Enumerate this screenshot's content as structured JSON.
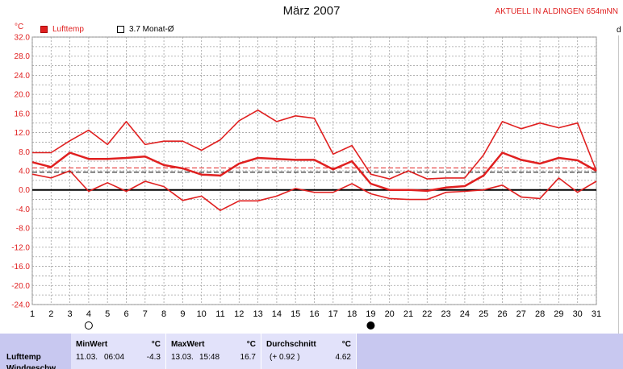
{
  "header": {
    "title": "März 2007",
    "station": "AKTUELL IN ALDINGEN 654mNN",
    "unit_left": "°C",
    "unit_right": "d"
  },
  "legend": [
    {
      "label": "Lufttemp",
      "color": "#e02020",
      "filled": true
    },
    {
      "label": "3.7 Monat-Ø",
      "color": "#ffffff",
      "filled": false
    }
  ],
  "stats": {
    "row_label": "Lufttemp",
    "row_label_2": "Windgeschw.",
    "min": {
      "header": "MinWert",
      "unit": "°C",
      "date": "11.03.",
      "time": "06:04",
      "value": "-4.3"
    },
    "max": {
      "header": "MaxWert",
      "unit": "°C",
      "date": "13.03.",
      "time": "15:48",
      "value": "16.7"
    },
    "avg": {
      "header": "Durchschnitt",
      "unit": "°C",
      "delta": "(+ 0.92 )",
      "value": "4.62"
    }
  },
  "chart_data": {
    "type": "line",
    "title": "März 2007",
    "ylabel": "°C",
    "ylim": [
      -24,
      32
    ],
    "yticks": [
      "32.0",
      "28.0",
      "24.0",
      "20.0",
      "16.0",
      "12.0",
      "8.0",
      "4.0",
      "0.0",
      "-4.0",
      "-8.0",
      "-12.0",
      "-16.0",
      "-20.0",
      "-24.0"
    ],
    "x": [
      1,
      2,
      3,
      4,
      5,
      6,
      7,
      8,
      9,
      10,
      11,
      12,
      13,
      14,
      15,
      16,
      17,
      18,
      19,
      20,
      21,
      22,
      23,
      24,
      25,
      26,
      27,
      28,
      29,
      30,
      31
    ],
    "series": [
      {
        "name": "max",
        "color": "#e02020",
        "values": [
          7.8,
          7.8,
          10.3,
          12.5,
          9.5,
          14.3,
          9.5,
          10.2,
          10.2,
          8.3,
          10.5,
          14.5,
          16.7,
          14.3,
          15.5,
          15.0,
          7.5,
          9.3,
          3.3,
          2.3,
          4.0,
          2.3,
          2.5,
          2.5,
          7.3,
          14.3,
          12.8,
          14.0,
          13.0,
          14.0,
          4.0
        ]
      },
      {
        "name": "mean",
        "color": "#e02020",
        "values": [
          5.8,
          4.8,
          7.8,
          6.5,
          6.5,
          6.7,
          7.0,
          5.2,
          4.5,
          3.2,
          3.0,
          5.5,
          6.7,
          6.5,
          6.3,
          6.3,
          4.3,
          6.0,
          1.3,
          0.0,
          0.0,
          -0.2,
          0.5,
          0.8,
          3.0,
          7.8,
          6.3,
          5.5,
          6.7,
          6.2,
          4.0
        ]
      },
      {
        "name": "min",
        "color": "#e02020",
        "values": [
          3.3,
          2.5,
          4.0,
          -0.3,
          1.5,
          -0.3,
          1.8,
          0.7,
          -2.2,
          -1.3,
          -4.3,
          -2.3,
          -2.3,
          -1.3,
          0.3,
          -0.5,
          -0.5,
          1.3,
          -0.8,
          -1.8,
          -2.0,
          -2.0,
          -0.5,
          -0.3,
          0.0,
          1.0,
          -1.5,
          -1.8,
          2.5,
          -0.5,
          1.8
        ]
      }
    ],
    "reference_lines": [
      {
        "value": 3.7,
        "color": "#000000",
        "style": "dashed"
      },
      {
        "value": 4.62,
        "color": "#e02020",
        "style": "dashed"
      },
      {
        "value": 0.0,
        "color": "#000000",
        "style": "solid-thick"
      }
    ],
    "moon_markers": [
      {
        "day": 4,
        "kind": "full-moon"
      },
      {
        "day": 19,
        "kind": "new-moon"
      }
    ],
    "grid": true
  }
}
